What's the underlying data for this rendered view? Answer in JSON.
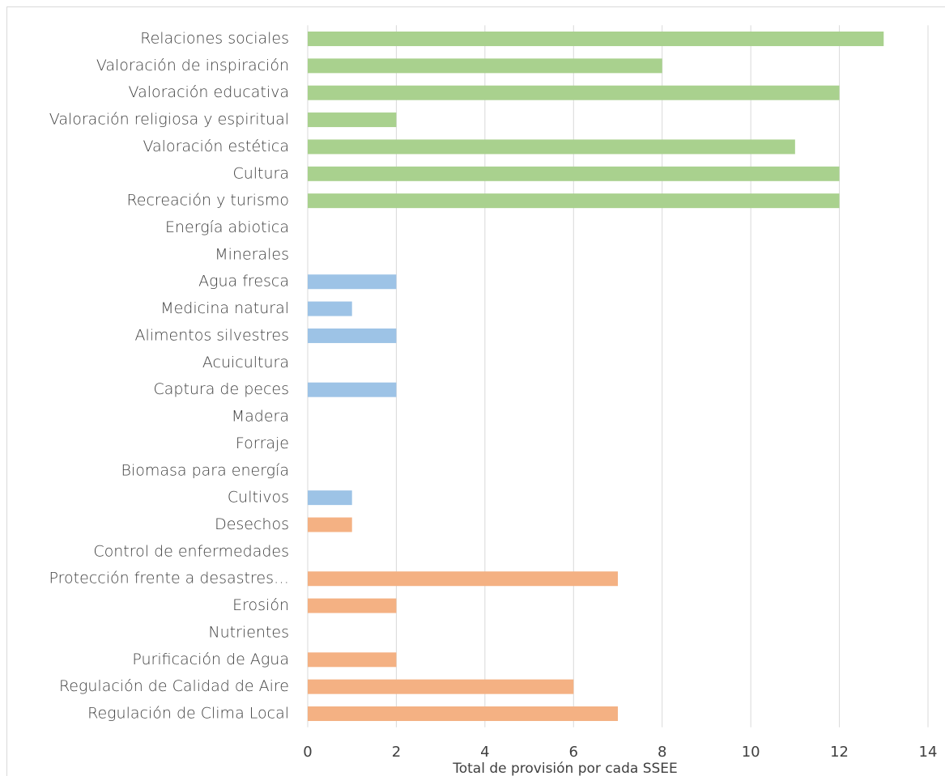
{
  "chart_data": {
    "type": "barh",
    "xlabel": "Total de provisión por cada SSEE",
    "categories": [
      "Relaciones sociales",
      "Valoración de inspiración",
      "Valoración educativa",
      "Valoración religiosa y espiritual",
      "Valoración estética",
      "Cultura",
      "Recreación y turismo",
      "Energía abiotica",
      "Minerales",
      "Agua fresca",
      "Medicina natural",
      "Alimentos silvestres",
      "Acuicultura",
      "Captura de peces",
      "Madera",
      "Forraje",
      "Biomasa para energía",
      "Cultivos",
      "Desechos",
      "Control de enfermedades",
      "Protección frente a desastres…",
      "Erosión",
      "Nutrientes",
      "Purificación de Agua",
      "Regulación de Calidad de Aire",
      "Regulación de Clima Local"
    ],
    "values": [
      13,
      8,
      12,
      2,
      11,
      12,
      12,
      0,
      0,
      2,
      1,
      2,
      0,
      2,
      0,
      0,
      0,
      1,
      1,
      0,
      7,
      2,
      0,
      2,
      6,
      7
    ],
    "colors": [
      "#a9d18e",
      "#a9d18e",
      "#a9d18e",
      "#a9d18e",
      "#a9d18e",
      "#a9d18e",
      "#a9d18e",
      "#9dc3e6",
      "#9dc3e6",
      "#9dc3e6",
      "#9dc3e6",
      "#9dc3e6",
      "#9dc3e6",
      "#9dc3e6",
      "#9dc3e6",
      "#9dc3e6",
      "#9dc3e6",
      "#9dc3e6",
      "#f4b183",
      "#f4b183",
      "#f4b183",
      "#f4b183",
      "#f4b183",
      "#f4b183",
      "#f4b183",
      "#f4b183"
    ],
    "xlim": [
      0,
      14
    ],
    "xticks": [
      0,
      2,
      4,
      6,
      8,
      10,
      12,
      14
    ],
    "grid": true
  }
}
